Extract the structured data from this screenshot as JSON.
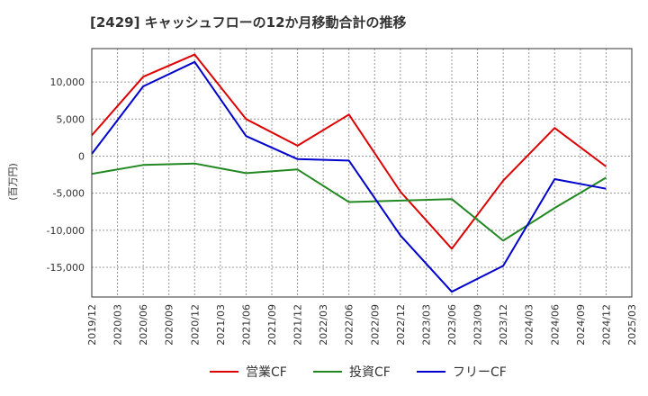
{
  "chart_data": {
    "type": "line",
    "title": "[2429]  キャッシュフローの12か月移動合計の推移",
    "xlabel": "",
    "ylabel": "(百万円)",
    "categories": [
      "2019/12",
      "2020/03",
      "2020/06",
      "2020/09",
      "2020/12",
      "2021/03",
      "2021/06",
      "2021/09",
      "2021/12",
      "2022/03",
      "2022/06",
      "2022/09",
      "2022/12",
      "2023/03",
      "2023/06",
      "2023/09",
      "2023/12",
      "2024/03",
      "2024/06",
      "2024/09",
      "2024/12",
      "2025/03"
    ],
    "ylim": [
      -19000,
      14500
    ],
    "yticks": [
      10000,
      5000,
      0,
      -5000,
      -10000,
      -15000
    ],
    "ytick_labels": [
      "10,000",
      "5,000",
      "0",
      "-5,000",
      "-10,000",
      "-15,000"
    ],
    "grid": true,
    "legend_position": "bottom",
    "series": [
      {
        "name": "営業CF",
        "color": "#dd0000",
        "points": [
          [
            0,
            2800
          ],
          [
            2,
            10700
          ],
          [
            4,
            13700
          ],
          [
            6,
            5000
          ],
          [
            8,
            1400
          ],
          [
            10,
            5600
          ],
          [
            12,
            -4800
          ],
          [
            14,
            -12500
          ],
          [
            16,
            -3300
          ],
          [
            18,
            3800
          ],
          [
            20,
            -1400
          ]
        ]
      },
      {
        "name": "投資CF",
        "color": "#228822",
        "points": [
          [
            0,
            -2400
          ],
          [
            2,
            -1200
          ],
          [
            4,
            -1000
          ],
          [
            6,
            -2300
          ],
          [
            8,
            -1800
          ],
          [
            10,
            -6200
          ],
          [
            12,
            -6000
          ],
          [
            14,
            -5800
          ],
          [
            16,
            -11400
          ],
          [
            18,
            -7000
          ],
          [
            20,
            -2900
          ]
        ]
      },
      {
        "name": "フリーCF",
        "color": "#0000cc",
        "points": [
          [
            0,
            300
          ],
          [
            2,
            9400
          ],
          [
            4,
            12700
          ],
          [
            6,
            2700
          ],
          [
            8,
            -400
          ],
          [
            10,
            -600
          ],
          [
            12,
            -10700
          ],
          [
            14,
            -18300
          ],
          [
            16,
            -14800
          ],
          [
            18,
            -3100
          ],
          [
            20,
            -4400
          ]
        ]
      }
    ]
  }
}
